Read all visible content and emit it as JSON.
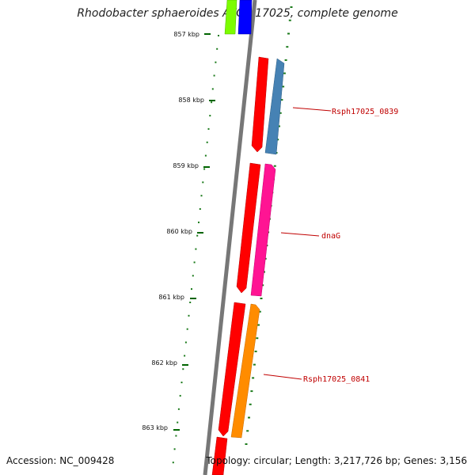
{
  "title": "Rhodobacter sphaeroides ATCC 17025, complete genome",
  "accession": "Accession: NC_009428",
  "topology": "Topology: circular; Length: 3,217,726 bp; Genes: 3,156",
  "ticks": [
    {
      "label": "857 kbp"
    },
    {
      "label": "858 kbp"
    },
    {
      "label": "859 kbp"
    },
    {
      "label": "860 kbp"
    },
    {
      "label": "861 kbp"
    },
    {
      "label": "862 kbp"
    },
    {
      "label": "863 kbp"
    }
  ],
  "genes": [
    {
      "name": "",
      "strand": "forward",
      "color": "#ff0000"
    },
    {
      "name": "",
      "strand": "forward",
      "color": "#ff0000"
    },
    {
      "name": "",
      "strand": "forward",
      "color": "#ff0000"
    },
    {
      "name": "",
      "strand": "forward",
      "color": "#ff0000"
    },
    {
      "name": "",
      "strand": "reverse",
      "color": "#7cfc00"
    },
    {
      "name": "",
      "strand": "reverse",
      "color": "#0000ff"
    },
    {
      "name": "Rsph17025_0839",
      "strand": "reverse",
      "color": "#4682b4"
    },
    {
      "name": "dnaG",
      "strand": "reverse",
      "color": "#ff1493"
    },
    {
      "name": "Rsph17025_0841",
      "strand": "reverse",
      "color": "#ff8c00"
    }
  ]
}
